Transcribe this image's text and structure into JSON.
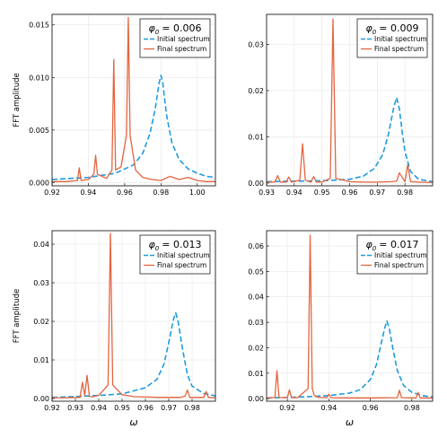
{
  "colors": {
    "initial": "#1f9be0",
    "final": "#e4643f",
    "grid": "#e6e6e6",
    "frame": "#000000"
  },
  "legend_labels": {
    "initial": "Initial spectrum",
    "final": "Final spectrum"
  },
  "chart_data": [
    {
      "type": "line",
      "phi_label": "φ",
      "phi_sub": "0",
      "phi_eq": "= 0.006",
      "ylabel": "FFT amplitude",
      "xlabel": "",
      "xlim": [
        0.92,
        1.01
      ],
      "ylim": [
        -0.0003,
        0.016
      ],
      "xticks": [
        0.92,
        0.94,
        0.96,
        0.98,
        1.0
      ],
      "xtick_labels": [
        "0.92",
        "0.94",
        "0.96",
        "0.98",
        "1.00"
      ],
      "yticks": [
        0.0,
        0.005,
        0.01,
        0.015
      ],
      "ytick_labels": [
        "0.000",
        "0.005",
        "0.010",
        "0.015"
      ],
      "legend_position": "top-right",
      "grid": true,
      "series": [
        {
          "name": "Initial spectrum",
          "style": "dashed",
          "x": [
            0.92,
            0.94,
            0.955,
            0.965,
            0.97,
            0.974,
            0.977,
            0.979,
            0.98,
            0.981,
            0.983,
            0.986,
            0.99,
            0.995,
            1.0,
            1.005,
            1.01
          ],
          "y": [
            0.0003,
            0.0005,
            0.0009,
            0.0017,
            0.0028,
            0.0047,
            0.0072,
            0.0095,
            0.0102,
            0.0095,
            0.0065,
            0.0038,
            0.0022,
            0.0013,
            0.0009,
            0.0006,
            0.0005
          ]
        },
        {
          "name": "Final spectrum",
          "style": "solid",
          "x": [
            0.92,
            0.928,
            0.934,
            0.935,
            0.936,
            0.94,
            0.943,
            0.944,
            0.945,
            0.95,
            0.953,
            0.954,
            0.955,
            0.958,
            0.961,
            0.962,
            0.963,
            0.966,
            0.97,
            0.975,
            0.98,
            0.985,
            0.99,
            0.995,
            1.0,
            1.005,
            1.01
          ],
          "y": [
            0.0001,
            0.0001,
            0.0002,
            0.0014,
            0.0002,
            0.0003,
            0.0008,
            0.0026,
            0.0008,
            0.0004,
            0.0012,
            0.0117,
            0.0012,
            0.0015,
            0.0045,
            0.0157,
            0.0045,
            0.0012,
            0.0005,
            0.0003,
            0.0002,
            0.0006,
            0.0003,
            0.0005,
            0.0002,
            0.0001,
            0.0001
          ]
        }
      ]
    },
    {
      "type": "line",
      "phi_label": "φ",
      "phi_sub": "0",
      "phi_eq": "= 0.009",
      "ylabel": "",
      "xlabel": "",
      "xlim": [
        0.93,
        0.99
      ],
      "ylim": [
        -0.0006,
        0.0365
      ],
      "xticks": [
        0.93,
        0.94,
        0.95,
        0.96,
        0.97,
        0.98
      ],
      "xtick_labels": [
        "0.93",
        "0.94",
        "0.95",
        "0.96",
        "0.97",
        "0.98"
      ],
      "yticks": [
        0.0,
        0.01,
        0.02,
        0.03
      ],
      "ytick_labels": [
        "0.00",
        "0.01",
        "0.02",
        "0.03"
      ],
      "legend_position": "top-right",
      "grid": true,
      "series": [
        {
          "name": "Initial spectrum",
          "style": "dashed",
          "x": [
            0.93,
            0.94,
            0.95,
            0.96,
            0.965,
            0.969,
            0.972,
            0.974,
            0.976,
            0.977,
            0.978,
            0.979,
            0.98,
            0.982,
            0.985,
            0.99
          ],
          "y": [
            0.0003,
            0.0004,
            0.0005,
            0.0008,
            0.0015,
            0.0032,
            0.0062,
            0.0105,
            0.0165,
            0.0185,
            0.016,
            0.011,
            0.0068,
            0.0025,
            0.0008,
            0.0003
          ]
        },
        {
          "name": "Final spectrum",
          "style": "solid",
          "x": [
            0.93,
            0.933,
            0.934,
            0.935,
            0.937,
            0.938,
            0.939,
            0.942,
            0.943,
            0.944,
            0.946,
            0.947,
            0.948,
            0.95,
            0.953,
            0.954,
            0.955,
            0.96,
            0.965,
            0.97,
            0.975,
            0.977,
            0.978,
            0.98,
            0.981,
            0.982,
            0.985,
            0.99
          ],
          "y": [
            0.0002,
            0.0002,
            0.0016,
            0.0002,
            0.0002,
            0.0013,
            0.0002,
            0.0006,
            0.0085,
            0.0006,
            0.0002,
            0.0014,
            0.0002,
            0.0002,
            0.001,
            0.0355,
            0.001,
            0.0003,
            0.0002,
            0.0002,
            0.0003,
            0.0004,
            0.0022,
            0.0003,
            0.004,
            0.0003,
            0.0002,
            0.0001
          ]
        }
      ]
    },
    {
      "type": "line",
      "phi_label": "φ",
      "phi_sub": "0",
      "phi_eq": "= 0.013",
      "ylabel": "FFT amplitude",
      "xlabel": "ω",
      "xlim": [
        0.92,
        0.99
      ],
      "ylim": [
        -0.0007,
        0.0435
      ],
      "xticks": [
        0.92,
        0.93,
        0.94,
        0.95,
        0.96,
        0.97,
        0.98
      ],
      "xtick_labels": [
        "0.92",
        "0.93",
        "0.94",
        "0.95",
        "0.96",
        "0.97",
        "0.98"
      ],
      "yticks": [
        0.0,
        0.01,
        0.02,
        0.03,
        0.04
      ],
      "ytick_labels": [
        "0.00",
        "0.01",
        "0.02",
        "0.03",
        "0.04"
      ],
      "legend_position": "top-right",
      "grid": true,
      "series": [
        {
          "name": "Initial spectrum",
          "style": "dashed",
          "x": [
            0.92,
            0.93,
            0.94,
            0.95,
            0.96,
            0.965,
            0.968,
            0.97,
            0.972,
            0.973,
            0.974,
            0.976,
            0.978,
            0.98,
            0.985,
            0.99
          ],
          "y": [
            0.0003,
            0.0005,
            0.0008,
            0.0012,
            0.0028,
            0.005,
            0.009,
            0.0145,
            0.0205,
            0.0222,
            0.02,
            0.0125,
            0.0062,
            0.0032,
            0.0013,
            0.0007
          ]
        },
        {
          "name": "Final spectrum",
          "style": "solid",
          "x": [
            0.92,
            0.925,
            0.932,
            0.933,
            0.934,
            0.935,
            0.936,
            0.937,
            0.94,
            0.944,
            0.945,
            0.946,
            0.95,
            0.955,
            0.96,
            0.965,
            0.97,
            0.975,
            0.977,
            0.978,
            0.979,
            0.985,
            0.986,
            0.987,
            0.99
          ],
          "y": [
            0.0002,
            0.0002,
            0.0003,
            0.0042,
            0.0008,
            0.006,
            0.0006,
            0.0004,
            0.0008,
            0.0035,
            0.0428,
            0.0035,
            0.001,
            0.0005,
            0.0004,
            0.0003,
            0.0003,
            0.0003,
            0.0006,
            0.0022,
            0.0003,
            0.0003,
            0.0018,
            0.0003,
            0.0002
          ]
        }
      ]
    },
    {
      "type": "line",
      "phi_label": "φ",
      "phi_sub": "0",
      "phi_eq": "= 0.017",
      "ylabel": "",
      "xlabel": "ω",
      "xlim": [
        0.91,
        0.99
      ],
      "ylim": [
        -0.001,
        0.066
      ],
      "xticks": [
        0.92,
        0.94,
        0.96,
        0.98
      ],
      "xtick_labels": [
        "0.92",
        "0.94",
        "0.96",
        "0.98"
      ],
      "yticks": [
        0.0,
        0.01,
        0.02,
        0.03,
        0.04,
        0.05,
        0.06
      ],
      "ytick_labels": [
        "0.00",
        "0.01",
        "0.02",
        "0.03",
        "0.04",
        "0.05",
        "0.06"
      ],
      "legend_position": "top-right",
      "grid": true,
      "series": [
        {
          "name": "Initial spectrum",
          "style": "dashed",
          "x": [
            0.91,
            0.92,
            0.93,
            0.94,
            0.95,
            0.955,
            0.96,
            0.963,
            0.965,
            0.967,
            0.968,
            0.969,
            0.971,
            0.973,
            0.976,
            0.98,
            0.985,
            0.99
          ],
          "y": [
            0.0003,
            0.0005,
            0.0008,
            0.0012,
            0.0022,
            0.0035,
            0.0075,
            0.0135,
            0.021,
            0.028,
            0.0305,
            0.028,
            0.019,
            0.011,
            0.0052,
            0.0025,
            0.0012,
            0.0007
          ]
        },
        {
          "name": "Final spectrum",
          "style": "solid",
          "x": [
            0.91,
            0.914,
            0.915,
            0.916,
            0.92,
            0.921,
            0.922,
            0.925,
            0.93,
            0.931,
            0.932,
            0.933,
            0.935,
            0.939,
            0.94,
            0.941,
            0.95,
            0.96,
            0.973,
            0.974,
            0.975,
            0.982,
            0.983,
            0.984,
            0.988,
            0.99
          ],
          "y": [
            0.0003,
            0.0005,
            0.011,
            0.0005,
            0.0004,
            0.0035,
            0.0004,
            0.0004,
            0.004,
            0.0642,
            0.004,
            0.0012,
            0.0005,
            0.0004,
            0.0018,
            0.0004,
            0.0003,
            0.0003,
            0.0004,
            0.0033,
            0.0004,
            0.0003,
            0.0025,
            0.0003,
            0.0003,
            0.0002
          ]
        }
      ]
    }
  ]
}
